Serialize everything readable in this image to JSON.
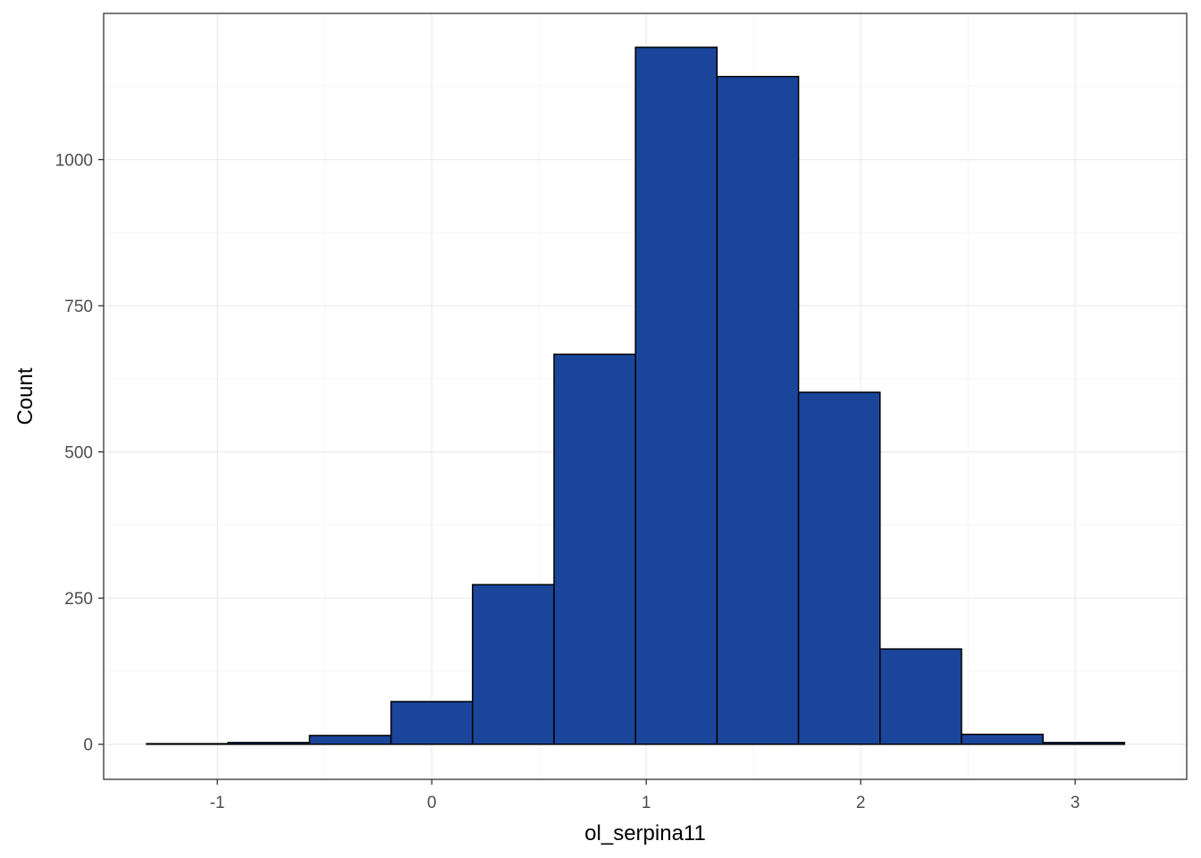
{
  "chart_data": {
    "type": "bar",
    "subtype": "histogram",
    "xlabel": "ol_serpina11",
    "ylabel": "Count",
    "xlim": [
      -1.53,
      3.52
    ],
    "ylim": [
      -60,
      1250
    ],
    "x_ticks": [
      -1,
      0,
      1,
      2,
      3
    ],
    "y_ticks": [
      0,
      250,
      500,
      750,
      1000
    ],
    "grid": true,
    "bin_width": 0.38,
    "bins": [
      {
        "x0": -1.33,
        "x1": -0.95,
        "count": 1
      },
      {
        "x0": -0.95,
        "x1": -0.57,
        "count": 3
      },
      {
        "x0": -0.57,
        "x1": -0.19,
        "count": 15
      },
      {
        "x0": -0.19,
        "x1": 0.19,
        "count": 73
      },
      {
        "x0": 0.19,
        "x1": 0.57,
        "count": 273
      },
      {
        "x0": 0.57,
        "x1": 0.95,
        "count": 667
      },
      {
        "x0": 0.95,
        "x1": 1.33,
        "count": 1192
      },
      {
        "x0": 1.33,
        "x1": 1.71,
        "count": 1142
      },
      {
        "x0": 1.71,
        "x1": 2.09,
        "count": 602
      },
      {
        "x0": 2.09,
        "x1": 2.47,
        "count": 163
      },
      {
        "x0": 2.47,
        "x1": 2.85,
        "count": 17
      },
      {
        "x0": 2.85,
        "x1": 3.23,
        "count": 3
      }
    ],
    "bar_color": "#1a459a",
    "bar_outline": "#000000"
  }
}
